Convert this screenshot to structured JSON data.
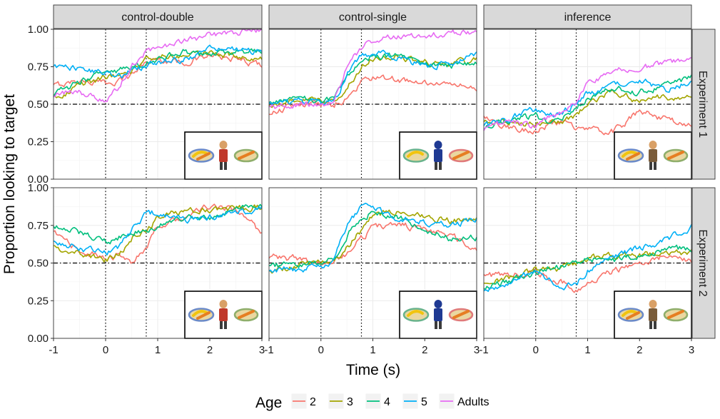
{
  "chart_data": {
    "type": "line",
    "facets": {
      "columns": [
        "control-double",
        "control-single",
        "inference"
      ],
      "rows": [
        "Experiment 1",
        "Experiment 2"
      ]
    },
    "xlabel": "Time (s)",
    "ylabel": "Proportion looking to target",
    "xlim": [
      -1,
      3
    ],
    "ylim": [
      0,
      1
    ],
    "xticks": [
      "-1",
      "0",
      "1",
      "2",
      "3"
    ],
    "yticks": [
      "0.00",
      "0.25",
      "0.50",
      "0.75",
      "1.00"
    ],
    "reference_lines": {
      "horizontal": 0.5,
      "vertical": [
        0,
        0.78
      ]
    },
    "grid": true,
    "legend": {
      "title": "Age",
      "position": "bottom",
      "entries": [
        {
          "name": "2",
          "color": "#F8766D"
        },
        {
          "name": "3",
          "color": "#A3A500"
        },
        {
          "name": "4",
          "color": "#00BF7D"
        },
        {
          "name": "5",
          "color": "#00B0F6"
        },
        {
          "name": "Adults",
          "color": "#E76BF3"
        }
      ]
    },
    "x": [
      -1,
      -0.5,
      0,
      0.25,
      0.5,
      0.78,
      1,
      1.5,
      2,
      2.5,
      3
    ],
    "panels": [
      {
        "row": "Experiment 1",
        "col": "control-double",
        "series": [
          {
            "name": "2",
            "values": [
              0.62,
              0.66,
              0.64,
              0.66,
              0.7,
              0.78,
              0.8,
              0.78,
              0.82,
              0.8,
              0.76
            ]
          },
          {
            "name": "3",
            "values": [
              0.55,
              0.62,
              0.68,
              0.7,
              0.72,
              0.8,
              0.82,
              0.83,
              0.83,
              0.82,
              0.8
            ]
          },
          {
            "name": "4",
            "values": [
              0.56,
              0.65,
              0.72,
              0.72,
              0.74,
              0.78,
              0.8,
              0.85,
              0.83,
              0.85,
              0.85
            ]
          },
          {
            "name": "5",
            "values": [
              0.74,
              0.74,
              0.7,
              0.68,
              0.72,
              0.76,
              0.78,
              0.8,
              0.86,
              0.86,
              0.84
            ]
          },
          {
            "name": "Adults",
            "values": [
              0.57,
              0.58,
              0.52,
              0.62,
              0.75,
              0.86,
              0.88,
              0.91,
              0.96,
              0.98,
              1.0
            ]
          }
        ]
      },
      {
        "row": "Experiment 1",
        "col": "control-single",
        "series": [
          {
            "name": "2",
            "values": [
              0.43,
              0.5,
              0.5,
              0.5,
              0.54,
              0.65,
              0.68,
              0.66,
              0.64,
              0.63,
              0.61
            ]
          },
          {
            "name": "3",
            "values": [
              0.5,
              0.53,
              0.53,
              0.52,
              0.6,
              0.75,
              0.8,
              0.82,
              0.78,
              0.77,
              0.79
            ]
          },
          {
            "name": "4",
            "values": [
              0.52,
              0.53,
              0.53,
              0.52,
              0.68,
              0.8,
              0.82,
              0.82,
              0.77,
              0.75,
              0.78
            ]
          },
          {
            "name": "5",
            "values": [
              0.5,
              0.52,
              0.52,
              0.51,
              0.7,
              0.82,
              0.85,
              0.8,
              0.76,
              0.77,
              0.84
            ]
          },
          {
            "name": "Adults",
            "values": [
              0.48,
              0.5,
              0.5,
              0.51,
              0.76,
              0.88,
              0.92,
              0.95,
              0.96,
              0.97,
              0.98
            ]
          }
        ]
      },
      {
        "row": "Experiment 1",
        "col": "inference",
        "series": [
          {
            "name": "2",
            "values": [
              0.42,
              0.34,
              0.33,
              0.36,
              0.38,
              0.35,
              0.33,
              0.32,
              0.45,
              0.4,
              0.35
            ]
          },
          {
            "name": "3",
            "values": [
              0.4,
              0.38,
              0.36,
              0.4,
              0.37,
              0.42,
              0.5,
              0.58,
              0.52,
              0.55,
              0.55
            ]
          },
          {
            "name": "4",
            "values": [
              0.35,
              0.4,
              0.42,
              0.38,
              0.4,
              0.48,
              0.55,
              0.6,
              0.58,
              0.62,
              0.68
            ]
          },
          {
            "name": "5",
            "values": [
              0.35,
              0.4,
              0.47,
              0.42,
              0.44,
              0.5,
              0.58,
              0.62,
              0.66,
              0.6,
              0.65
            ]
          },
          {
            "name": "Adults",
            "values": [
              0.33,
              0.38,
              0.36,
              0.42,
              0.44,
              0.52,
              0.65,
              0.72,
              0.74,
              0.78,
              0.81
            ]
          }
        ]
      },
      {
        "row": "Experiment 2",
        "col": "control-double",
        "series": [
          {
            "name": "2",
            "values": [
              0.7,
              0.58,
              0.53,
              0.55,
              0.51,
              0.58,
              0.75,
              0.8,
              0.88,
              0.85,
              0.7
            ]
          },
          {
            "name": "3",
            "values": [
              0.62,
              0.56,
              0.52,
              0.56,
              0.66,
              0.72,
              0.8,
              0.85,
              0.85,
              0.86,
              0.87
            ]
          },
          {
            "name": "4",
            "values": [
              0.75,
              0.7,
              0.64,
              0.67,
              0.72,
              0.7,
              0.75,
              0.8,
              0.8,
              0.86,
              0.88
            ]
          },
          {
            "name": "5",
            "values": [
              0.64,
              0.6,
              0.56,
              0.6,
              0.72,
              0.82,
              0.84,
              0.78,
              0.8,
              0.84,
              0.86
            ]
          }
        ]
      },
      {
        "row": "Experiment 2",
        "col": "control-single",
        "series": [
          {
            "name": "2",
            "values": [
              0.54,
              0.53,
              0.5,
              0.51,
              0.56,
              0.66,
              0.74,
              0.76,
              0.72,
              0.68,
              0.6
            ]
          },
          {
            "name": "3",
            "values": [
              0.45,
              0.48,
              0.5,
              0.52,
              0.6,
              0.72,
              0.82,
              0.84,
              0.8,
              0.78,
              0.8
            ]
          },
          {
            "name": "4",
            "values": [
              0.48,
              0.49,
              0.5,
              0.53,
              0.68,
              0.8,
              0.84,
              0.8,
              0.72,
              0.66,
              0.67
            ]
          },
          {
            "name": "5",
            "values": [
              0.46,
              0.46,
              0.48,
              0.52,
              0.74,
              0.87,
              0.86,
              0.8,
              0.77,
              0.74,
              0.8
            ]
          }
        ]
      },
      {
        "row": "Experiment 2",
        "col": "inference",
        "series": [
          {
            "name": "2",
            "values": [
              0.41,
              0.42,
              0.45,
              0.4,
              0.38,
              0.32,
              0.36,
              0.45,
              0.5,
              0.55,
              0.5
            ]
          },
          {
            "name": "3",
            "values": [
              0.38,
              0.4,
              0.46,
              0.45,
              0.46,
              0.5,
              0.53,
              0.55,
              0.55,
              0.56,
              0.57
            ]
          },
          {
            "name": "4",
            "values": [
              0.34,
              0.38,
              0.44,
              0.48,
              0.48,
              0.5,
              0.53,
              0.52,
              0.55,
              0.58,
              0.6
            ]
          },
          {
            "name": "5",
            "values": [
              0.32,
              0.38,
              0.44,
              0.4,
              0.35,
              0.36,
              0.45,
              0.55,
              0.6,
              0.65,
              0.74
            ]
          }
        ]
      }
    ]
  }
}
